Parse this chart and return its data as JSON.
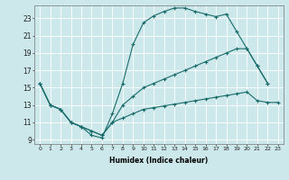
{
  "xlabel": "Humidex (Indice chaleur)",
  "background_color": "#cce8ea",
  "grid_color": "#ffffff",
  "line_color": "#1a6b6b",
  "xlim": [
    -0.5,
    23.5
  ],
  "ylim": [
    8.5,
    24.5
  ],
  "xticks": [
    0,
    1,
    2,
    3,
    4,
    5,
    6,
    7,
    8,
    9,
    10,
    11,
    12,
    13,
    14,
    15,
    16,
    17,
    18,
    19,
    20,
    21,
    22,
    23
  ],
  "yticks": [
    9,
    11,
    13,
    15,
    17,
    19,
    21,
    23
  ],
  "line1_x": [
    0,
    1,
    2,
    3,
    4,
    5,
    6,
    7,
    8,
    9,
    10,
    11,
    12,
    13,
    14,
    15,
    16,
    17,
    18,
    19,
    20,
    21,
    22
  ],
  "line1_y": [
    15.5,
    13.0,
    12.5,
    11.0,
    10.5,
    9.5,
    9.2,
    12.0,
    15.5,
    20.0,
    22.5,
    23.3,
    23.8,
    24.2,
    24.2,
    23.8,
    23.5,
    23.2,
    23.5,
    21.5,
    19.5,
    17.5,
    15.5
  ],
  "line2_x": [
    0,
    1,
    2,
    3,
    4,
    5,
    6,
    7,
    8,
    9,
    10,
    11,
    12,
    13,
    14,
    15,
    16,
    17,
    18,
    19,
    20,
    21,
    22
  ],
  "line2_y": [
    15.5,
    13.0,
    12.5,
    11.0,
    10.5,
    10.0,
    9.5,
    11.0,
    13.0,
    14.0,
    15.0,
    15.5,
    16.0,
    16.5,
    17.0,
    17.5,
    18.0,
    18.5,
    19.0,
    19.5,
    19.5,
    17.5,
    15.5
  ],
  "line3_x": [
    0,
    1,
    2,
    3,
    4,
    5,
    6,
    7,
    8,
    9,
    10,
    11,
    12,
    13,
    14,
    15,
    16,
    17,
    18,
    19,
    20,
    21,
    22,
    23
  ],
  "line3_y": [
    15.5,
    13.0,
    12.5,
    11.0,
    10.5,
    10.0,
    9.5,
    11.0,
    11.5,
    12.0,
    12.5,
    12.7,
    12.9,
    13.1,
    13.3,
    13.5,
    13.7,
    13.9,
    14.1,
    14.3,
    14.5,
    13.5,
    13.3,
    13.3
  ]
}
